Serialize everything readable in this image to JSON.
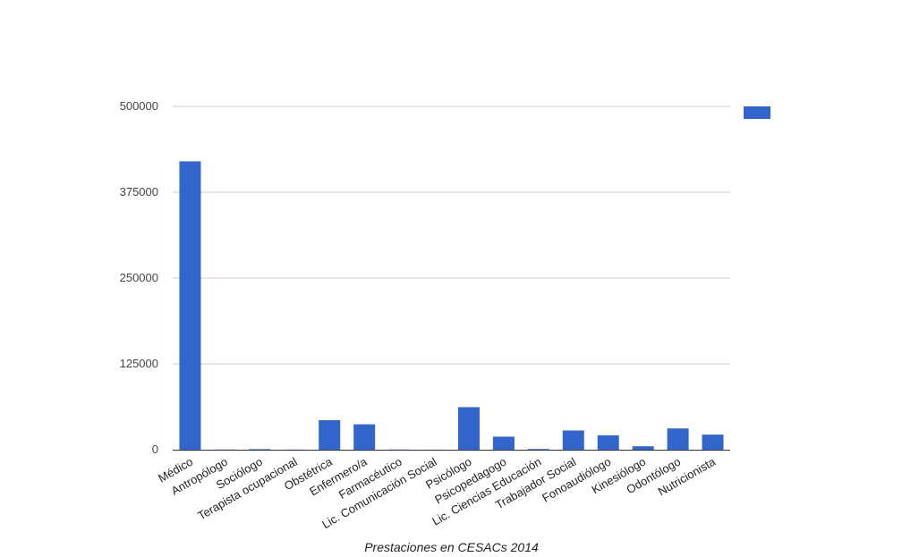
{
  "chart_data": {
    "type": "bar",
    "xlabel": "Prestaciones en CESACs 2014",
    "ylabel": "",
    "ylim": [
      0,
      500000
    ],
    "yticks": [
      0,
      125000,
      250000,
      375000,
      500000
    ],
    "grid": true,
    "legend_position": "right",
    "bar_color": "#3366cc",
    "categories": [
      "Médico",
      "Antropólogo",
      "Sociólogo",
      "Terapista ocupacional",
      "Obstétrica",
      "Enfermero/a",
      "Farmacéutico",
      "Lic. Comunicación Social",
      "Psicólogo",
      "Psicopedagogo",
      "Lic. Ciencias Educación",
      "Trabajador Social",
      "Fonoaudiólogo",
      "Kinesiólogo",
      "Odontólogo",
      "Nutricionista"
    ],
    "series": [
      {
        "values": [
          420000,
          300,
          800,
          200,
          43000,
          37000,
          300,
          100,
          62000,
          19000,
          1000,
          28000,
          21000,
          5000,
          31000,
          22000
        ]
      }
    ]
  }
}
